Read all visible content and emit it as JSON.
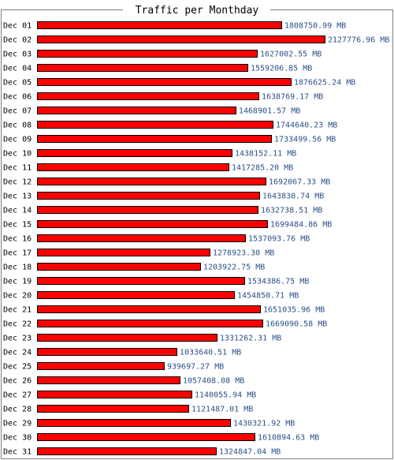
{
  "chart_data": {
    "type": "bar",
    "orientation": "horizontal",
    "title": "Traffic per Monthday",
    "unit": "MB",
    "categories": [
      "Dec 01",
      "Dec 02",
      "Dec 03",
      "Dec 04",
      "Dec 05",
      "Dec 06",
      "Dec 07",
      "Dec 08",
      "Dec 09",
      "Dec 10",
      "Dec 11",
      "Dec 12",
      "Dec 13",
      "Dec 14",
      "Dec 15",
      "Dec 16",
      "Dec 17",
      "Dec 18",
      "Dec 19",
      "Dec 20",
      "Dec 21",
      "Dec 22",
      "Dec 23",
      "Dec 24",
      "Dec 25",
      "Dec 26",
      "Dec 27",
      "Dec 28",
      "Dec 29",
      "Dec 30",
      "Dec 31"
    ],
    "values": [
      1808750.99,
      2127776.96,
      1627002.55,
      1559206.85,
      1876625.24,
      1638769.17,
      1468901.57,
      1744640.23,
      1733499.56,
      1438152.11,
      1417285.2,
      1692067.33,
      1643830.74,
      1632738.51,
      1699484.86,
      1537093.76,
      1278923.3,
      1203922.75,
      1534386.75,
      1454850.71,
      1651035.96,
      1669090.58,
      1331262.31,
      1033640.51,
      939697.27,
      1057408.08,
      1140055.94,
      1121487.01,
      1430321.92,
      1610894.63,
      1324847.04
    ],
    "value_labels": [
      "1808750.99 MB",
      "2127776.96 MB",
      "1627002.55 MB",
      "1559206.85 MB",
      "1876625.24 MB",
      "1638769.17 MB",
      "1468901.57 MB",
      "1744640.23 MB",
      "1733499.56 MB",
      "1438152.11 MB",
      "1417285.20 MB",
      "1692067.33 MB",
      "1643830.74 MB",
      "1632738.51 MB",
      "1699484.86 MB",
      "1537093.76 MB",
      "1278923.30 MB",
      "1203922.75 MB",
      "1534386.75 MB",
      "1454850.71 MB",
      "1651035.96 MB",
      "1669090.58 MB",
      "1331262.31 MB",
      "1033640.51 MB",
      "939697.27 MB",
      "1057408.08 MB",
      "1140055.94 MB",
      "1121487.01 MB",
      "1430321.92 MB",
      "1610894.63 MB",
      "1324847.04 MB"
    ],
    "xlim": [
      0,
      2127776.96
    ],
    "grid": false,
    "legend": "none",
    "colors": {
      "bar_fill": "#ff0000",
      "bar_stroke": "#000000",
      "value_text": "#2a4f86",
      "label_text": "#000000",
      "frame": "#808080",
      "background": "#ffffff"
    }
  }
}
